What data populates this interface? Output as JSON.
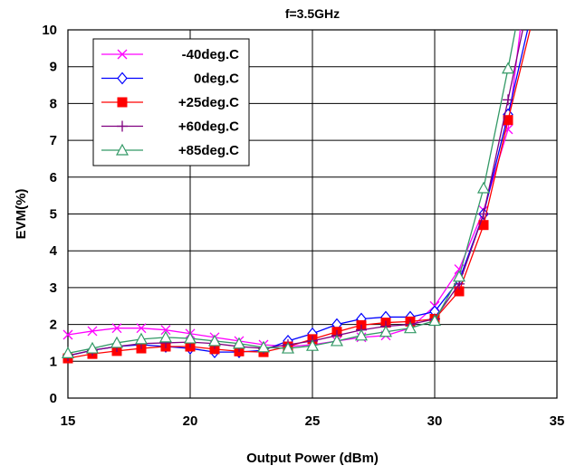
{
  "chart_data": {
    "type": "line",
    "title": "f=3.5GHz",
    "xlabel": "Output Power (dBm)",
    "ylabel": "EVM(%)",
    "xlim": [
      15,
      35
    ],
    "ylim": [
      0,
      10
    ],
    "xticks": [
      15,
      20,
      25,
      30,
      35
    ],
    "yticks": [
      0,
      1,
      2,
      3,
      4,
      5,
      6,
      7,
      8,
      9,
      10
    ],
    "grid": true,
    "legend_position": "top-left",
    "x": [
      15,
      16,
      17,
      18,
      19,
      20,
      21,
      22,
      23,
      24,
      25,
      26,
      27,
      28,
      29,
      30,
      31,
      32,
      33
    ],
    "series": [
      {
        "name": "-40deg.C",
        "color": "#ff00ff",
        "marker": "x",
        "values": [
          1.72,
          1.82,
          1.9,
          1.9,
          1.85,
          1.75,
          1.65,
          1.55,
          1.45,
          1.4,
          1.45,
          1.55,
          1.65,
          1.7,
          1.9,
          2.5,
          3.5,
          5.1,
          7.3
        ],
        "tail": [
          [
            33.5,
            10
          ]
        ]
      },
      {
        "name": "0deg.C",
        "color": "#0000ff",
        "marker": "diamond",
        "values": [
          1.15,
          1.3,
          1.4,
          1.45,
          1.4,
          1.35,
          1.25,
          1.25,
          1.3,
          1.55,
          1.75,
          2.0,
          2.15,
          2.2,
          2.2,
          2.35,
          3.2,
          5.0,
          7.7
        ],
        "tail": [
          [
            33.8,
            10
          ]
        ]
      },
      {
        "name": "+25deg.C",
        "color": "#ff0000",
        "marker": "square",
        "values": [
          1.08,
          1.2,
          1.28,
          1.35,
          1.4,
          1.4,
          1.33,
          1.27,
          1.25,
          1.4,
          1.6,
          1.8,
          1.98,
          2.05,
          2.08,
          2.15,
          2.9,
          4.7,
          7.55
        ],
        "tail": [
          [
            33.9,
            10
          ]
        ]
      },
      {
        "name": "+60deg.C",
        "color": "#800080",
        "marker": "plus",
        "values": [
          1.15,
          1.3,
          1.4,
          1.48,
          1.5,
          1.52,
          1.48,
          1.4,
          1.35,
          1.45,
          1.55,
          1.7,
          1.85,
          1.95,
          2.0,
          2.15,
          3.1,
          5.0,
          8.1
        ],
        "tail": [
          [
            33.6,
            10
          ]
        ]
      },
      {
        "name": "+85deg.C",
        "color": "#339966",
        "marker": "triangle",
        "values": [
          1.22,
          1.35,
          1.5,
          1.6,
          1.65,
          1.62,
          1.55,
          1.48,
          1.38,
          1.35,
          1.42,
          1.55,
          1.7,
          1.8,
          1.9,
          2.1,
          3.3,
          5.7,
          8.95
        ],
        "tail": [
          [
            33.3,
            10
          ]
        ]
      }
    ]
  }
}
